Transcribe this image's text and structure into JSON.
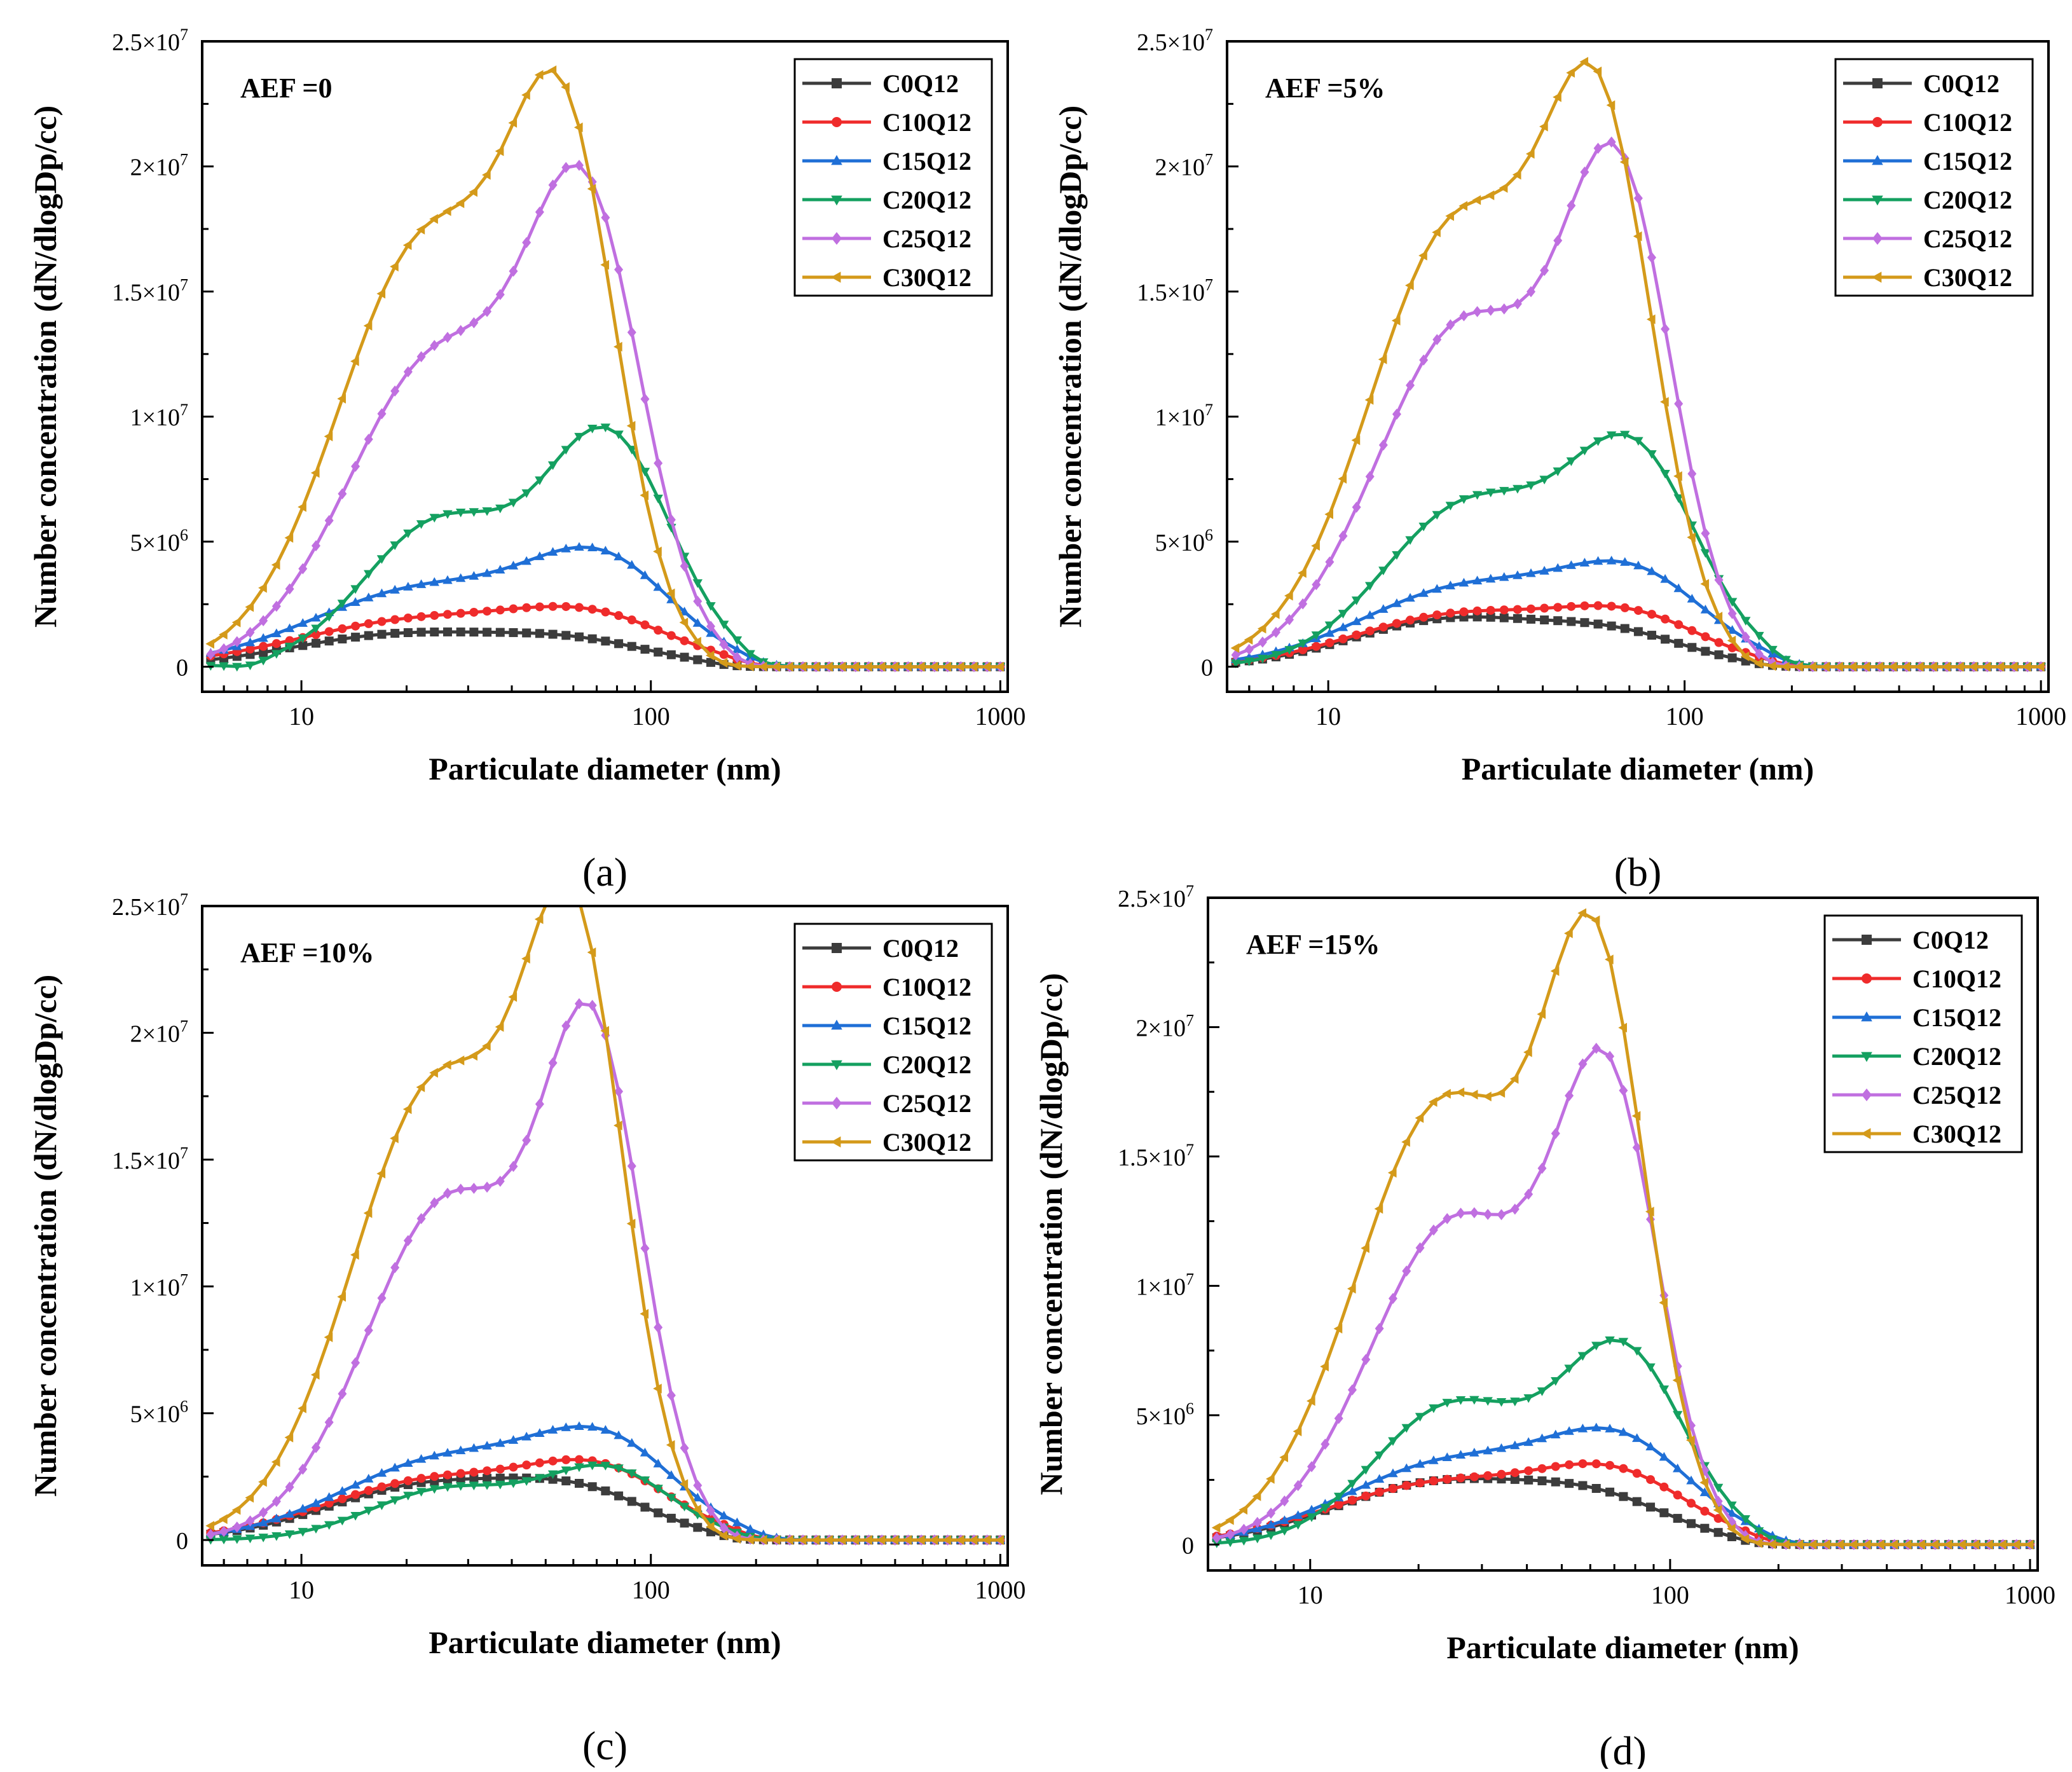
{
  "legend_entries": [
    "C0Q12",
    "C10Q12",
    "C15Q12",
    "C20Q12",
    "C25Q12",
    "C30Q12"
  ],
  "x_ticks": [
    10,
    100,
    1000
  ],
  "x_tick_labels": [
    "10",
    "100",
    "1000"
  ],
  "y_ticks": [
    0,
    5000000,
    10000000,
    15000000,
    20000000,
    25000000
  ],
  "y_tick_labels": [
    {
      "mant": "0",
      "exp": ""
    },
    {
      "mant": "5×10",
      "exp": "6"
    },
    {
      "mant": "1×10",
      "exp": "7"
    },
    {
      "mant": "1.5×10",
      "exp": "7"
    },
    {
      "mant": "2×10",
      "exp": "7"
    },
    {
      "mant": "2.5×10",
      "exp": "7"
    }
  ],
  "series_colors": [
    "#3c3c3c",
    "#ef2b2b",
    "#1f6fd6",
    "#14a060",
    "#c06fe0",
    "#d49a1a"
  ],
  "series_markers": [
    "square",
    "circle",
    "triangle-up",
    "triangle-down",
    "diamond",
    "triangle-left"
  ],
  "chart_data": [
    {
      "type": "line",
      "panel_label": "(a)",
      "annotation": "AEF =0",
      "xlabel": "Particulate diameter (nm)",
      "ylabel": "Number concentration (dN/dlogDp/cc)",
      "x_scale": "log",
      "xlim": [
        5.2,
        1050
      ],
      "ylim": [
        -1000000,
        25000000
      ],
      "legend_position": "top-right",
      "grid": false,
      "peaks": [
        {
          "name": "C0Q12",
          "baseline": 0,
          "lobes": [
            [
              1300000,
              1.3,
              0.32
            ],
            [
              800000,
              1.8,
              0.22
            ]
          ],
          "fall": 2.1,
          "fall_sigma": 0.1
        },
        {
          "name": "C10Q12",
          "baseline": 0,
          "lobes": [
            [
              1900000,
              1.36,
              0.36
            ],
            [
              1500000,
              1.85,
              0.22
            ]
          ],
          "fall": 2.18,
          "fall_sigma": 0.09
        },
        {
          "name": "C15Q12",
          "baseline": 0,
          "lobes": [
            [
              3200000,
              1.38,
              0.34
            ],
            [
              3500000,
              1.87,
              0.2
            ]
          ],
          "fall": 2.22,
          "fall_sigma": 0.09
        },
        {
          "name": "C20Q12",
          "baseline": -200000,
          "lobes": [
            [
              5800000,
              1.4,
              0.22
            ],
            [
              9000000,
              1.88,
              0.18
            ]
          ],
          "fall": 2.22,
          "fall_sigma": 0.08
        },
        {
          "name": "C25Q12",
          "baseline": 0,
          "lobes": [
            [
              12500000,
              1.4,
              0.26
            ],
            [
              16300000,
              1.82,
              0.16
            ]
          ],
          "fall": 2.18,
          "fall_sigma": 0.08
        },
        {
          "name": "C30Q12",
          "baseline": 0,
          "lobes": [
            [
              17200000,
              1.37,
              0.26
            ],
            [
              17500000,
              1.76,
              0.15
            ]
          ],
          "fall": 2.12,
          "fall_sigma": 0.08
        }
      ]
    },
    {
      "type": "line",
      "panel_label": "(b)",
      "annotation": "AEF =5%",
      "xlabel": "Particulate diameter (nm)",
      "ylabel": "Number concentration (dN/dlogDp/cc)",
      "x_scale": "log",
      "xlim": [
        5.2,
        1050
      ],
      "ylim": [
        -1000000,
        25000000
      ],
      "legend_position": "top-right",
      "grid": false,
      "peaks": [
        {
          "name": "C0Q12",
          "baseline": 0,
          "lobes": [
            [
              1900000,
              1.35,
              0.28
            ],
            [
              1100000,
              1.82,
              0.2
            ]
          ],
          "fall": 2.12,
          "fall_sigma": 0.1
        },
        {
          "name": "C10Q12",
          "baseline": 0,
          "lobes": [
            [
              2100000,
              1.38,
              0.3
            ],
            [
              1700000,
              1.86,
              0.2
            ]
          ],
          "fall": 2.18,
          "fall_sigma": 0.09
        },
        {
          "name": "C15Q12",
          "baseline": 0,
          "lobes": [
            [
              3200000,
              1.4,
              0.3
            ],
            [
              3100000,
              1.87,
              0.2
            ]
          ],
          "fall": 2.2,
          "fall_sigma": 0.09
        },
        {
          "name": "C20Q12",
          "baseline": 0,
          "lobes": [
            [
              6500000,
              1.4,
              0.24
            ],
            [
              8100000,
              1.86,
              0.18
            ]
          ],
          "fall": 2.2,
          "fall_sigma": 0.08
        },
        {
          "name": "C25Q12",
          "baseline": 0,
          "lobes": [
            [
              13800000,
              1.39,
              0.25
            ],
            [
              17500000,
              1.82,
              0.15
            ]
          ],
          "fall": 2.15,
          "fall_sigma": 0.08
        },
        {
          "name": "C30Q12",
          "baseline": 0,
          "lobes": [
            [
              17800000,
              1.37,
              0.25
            ],
            [
              18500000,
              1.77,
              0.15
            ]
          ],
          "fall": 2.1,
          "fall_sigma": 0.08
        }
      ]
    },
    {
      "type": "line",
      "panel_label": "(c)",
      "annotation": "AEF =10%",
      "xlabel": "Particulate diameter (nm)",
      "ylabel": "Number concentration (dN/dlogDp/cc)",
      "x_scale": "log",
      "xlim": [
        5.2,
        1050
      ],
      "ylim": [
        -1000000,
        25000000
      ],
      "legend_position": "top-right",
      "grid": false,
      "peaks": [
        {
          "name": "C0Q12",
          "baseline": 0,
          "lobes": [
            [
              2200000,
              1.38,
              0.3
            ],
            [
              1400000,
              1.82,
              0.2
            ]
          ],
          "fall": 2.12,
          "fall_sigma": 0.1
        },
        {
          "name": "C10Q12",
          "baseline": 0,
          "lobes": [
            [
              2400000,
              1.4,
              0.32
            ],
            [
              2200000,
              1.87,
              0.2
            ]
          ],
          "fall": 2.2,
          "fall_sigma": 0.09
        },
        {
          "name": "C15Q12",
          "baseline": 0,
          "lobes": [
            [
              3200000,
              1.42,
              0.3
            ],
            [
              3300000,
              1.88,
              0.2
            ]
          ],
          "fall": 2.24,
          "fall_sigma": 0.09
        },
        {
          "name": "C20Q12",
          "baseline": 0,
          "lobes": [
            [
              2000000,
              1.42,
              0.22
            ],
            [
              2700000,
              1.88,
              0.18
            ]
          ],
          "fall": 2.2,
          "fall_sigma": 0.09
        },
        {
          "name": "C25Q12",
          "baseline": 0,
          "lobes": [
            [
              13500000,
              1.43,
              0.24
            ],
            [
              17800000,
              1.84,
              0.14
            ]
          ],
          "fall": 2.15,
          "fall_sigma": 0.08
        },
        {
          "name": "C30Q12",
          "baseline": 0,
          "lobes": [
            [
              18200000,
              1.4,
              0.25
            ],
            [
              20000000,
              1.79,
              0.14
            ]
          ],
          "fall": 2.12,
          "fall_sigma": 0.08
        }
      ]
    },
    {
      "type": "line",
      "panel_label": "(d)",
      "annotation": "AEF =15%",
      "xlabel": "Particulate diameter (nm)",
      "ylabel": "Number concentration (dN/dlogDp/cc)",
      "x_scale": "log",
      "xlim": [
        5.2,
        1050
      ],
      "ylim": [
        -1000000,
        25000000
      ],
      "legend_position": "top-right",
      "grid": false,
      "peaks": [
        {
          "name": "C0Q12",
          "baseline": 0,
          "lobes": [
            [
              2400000,
              1.37,
              0.3
            ],
            [
              1300000,
              1.82,
              0.2
            ]
          ],
          "fall": 2.12,
          "fall_sigma": 0.1
        },
        {
          "name": "C10Q12",
          "baseline": 0,
          "lobes": [
            [
              2400000,
              1.38,
              0.32
            ],
            [
              2200000,
              1.86,
              0.2
            ]
          ],
          "fall": 2.18,
          "fall_sigma": 0.09
        },
        {
          "name": "C15Q12",
          "baseline": 0,
          "lobes": [
            [
              3200000,
              1.4,
              0.3
            ],
            [
              3400000,
              1.87,
              0.2
            ]
          ],
          "fall": 2.22,
          "fall_sigma": 0.09
        },
        {
          "name": "C20Q12",
          "baseline": 0,
          "lobes": [
            [
              5400000,
              1.4,
              0.22
            ],
            [
              7300000,
              1.87,
              0.17
            ]
          ],
          "fall": 2.2,
          "fall_sigma": 0.08
        },
        {
          "name": "C25Q12",
          "baseline": 0,
          "lobes": [
            [
              12600000,
              1.41,
              0.24
            ],
            [
              16200000,
              1.83,
              0.14
            ]
          ],
          "fall": 2.15,
          "fall_sigma": 0.08
        },
        {
          "name": "C30Q12",
          "baseline": 0,
          "lobes": [
            [
              17200000,
              1.38,
              0.25
            ],
            [
              19800000,
              1.8,
              0.14
            ]
          ],
          "fall": 2.13,
          "fall_sigma": 0.08
        }
      ]
    }
  ]
}
